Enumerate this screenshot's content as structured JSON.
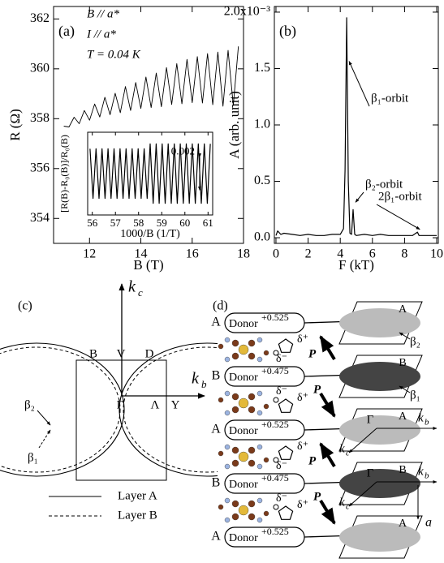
{
  "chart_data": [
    {
      "type": "line",
      "panel_label": "(a)",
      "annotations": [
        "B // a*",
        "I // a*",
        "T = 0.04 K"
      ],
      "xlabel": "B (T)",
      "ylabel": "R (Ω)",
      "x": [
        11.0,
        11.2,
        11.4,
        11.6,
        11.8,
        12.0,
        12.2,
        12.4,
        12.6,
        12.8,
        13.0,
        13.2,
        13.4,
        13.6,
        13.8,
        14.0,
        14.2,
        14.4,
        14.6,
        14.8,
        15.0,
        15.2,
        15.4,
        15.6,
        15.8,
        16.0,
        16.2,
        16.4,
        16.6,
        16.8,
        17.0,
        17.2,
        17.4,
        17.6,
        17.8
      ],
      "values": [
        357.7,
        357.67,
        358.06,
        357.8,
        358.33,
        357.94,
        358.59,
        358.07,
        358.86,
        358.16,
        359.02,
        358.24,
        359.29,
        358.33,
        359.45,
        358.41,
        359.67,
        358.45,
        359.83,
        358.48,
        360.05,
        358.57,
        360.21,
        358.6,
        360.38,
        358.64,
        360.49,
        358.63,
        360.61,
        358.56,
        360.67,
        358.5,
        360.74,
        358.53,
        360.9
      ],
      "color": "#000000",
      "xlim": [
        10.6,
        18.0
      ],
      "xticks": [
        12,
        14,
        16,
        18
      ],
      "ylim": [
        353,
        362.5
      ],
      "yticks": [
        354,
        356,
        358,
        360,
        362
      ]
    },
    {
      "type": "line",
      "xlabel": "1000/B (1/T)",
      "ylabel": "[R(B)-R₀(B)]/R₀(B)",
      "x": [
        55.9,
        56.03,
        56.16,
        56.29,
        56.42,
        56.55,
        56.68,
        56.81,
        56.94,
        57.07,
        57.2,
        57.33,
        57.46,
        57.59,
        57.72,
        57.85,
        57.98,
        58.11,
        58.24,
        58.37,
        58.5,
        58.63,
        58.76,
        58.89,
        59.02,
        59.15,
        59.28,
        59.41,
        59.54,
        59.67,
        59.8,
        59.93,
        60.06,
        60.19,
        60.32,
        60.45,
        60.58,
        60.71,
        60.84,
        60.97,
        61.1
      ],
      "values": [
        0.0015,
        -0.0015,
        0.0015,
        -0.0015,
        0.0015,
        -0.0015,
        0.0015,
        -0.0015,
        0.0015,
        -0.0015,
        0.0015,
        -0.0015,
        0.0015,
        -0.0015,
        0.0015,
        -0.0015,
        0.0015,
        -0.0015,
        0.0015,
        -0.0015,
        0.0018,
        -0.0018,
        0.0018,
        -0.0018,
        0.0018,
        -0.0018,
        0.0018,
        -0.0018,
        0.0018,
        -0.0018,
        0.0018,
        -0.0018,
        0.0018,
        -0.0018,
        0.0018,
        -0.0018,
        0.0018,
        -0.0018,
        0.0018,
        -0.0018,
        0.0018
      ],
      "color": "#000000",
      "xlim": [
        55.8,
        61.2
      ],
      "xticks": [
        56,
        57,
        58,
        59,
        60,
        61
      ],
      "ylim": [
        -0.0025,
        0.0025
      ],
      "scale_bar": 0.002
    },
    {
      "type": "line",
      "panel_label": "(b)",
      "xlabel": "F (kT)",
      "ylabel": "A (arb. unit)",
      "annotations": [
        "β₁-orbit",
        "β₂-orbit",
        "2β₁-orbit"
      ],
      "x": [
        0,
        0.1,
        0.3,
        0.5,
        1,
        1.5,
        2,
        2.5,
        3,
        3.5,
        4,
        4.2,
        4.3,
        4.4,
        4.5,
        4.6,
        4.7,
        4.8,
        4.9,
        5.0,
        5.5,
        6,
        6.5,
        7,
        7.5,
        8,
        8.5,
        8.8,
        8.9,
        9,
        9.5,
        10
      ],
      "values": [
        0.02,
        0.06,
        0.03,
        0.04,
        0.03,
        0.02,
        0.03,
        0.02,
        0.02,
        0.03,
        0.03,
        0.08,
        0.6,
        1.95,
        0.5,
        0.04,
        0.03,
        0.25,
        0.03,
        0.02,
        0.03,
        0.02,
        0.03,
        0.02,
        0.02,
        0.02,
        0.02,
        0.05,
        0.02,
        0.02,
        0.02,
        0.02
      ],
      "color": "#000000",
      "xlim": [
        -0.1,
        10.1
      ],
      "xticks": [
        0,
        2,
        4,
        6,
        8,
        10
      ],
      "ylim": [
        -0.05,
        2.05
      ],
      "yticks": [
        {
          "value": 0,
          "label": "0.0"
        },
        {
          "value": 0.5,
          "label": "0.5"
        },
        {
          "value": 1,
          "label": "1.0"
        },
        {
          "value": 1.5,
          "label": "1.5"
        },
        {
          "value": 2,
          "label": "2.0x10⁻³"
        }
      ]
    }
  ],
  "panel_c": {
    "label": "(c)",
    "kc": {
      "symbol": "k",
      "subscript": "c"
    },
    "kb": {
      "symbol": "k",
      "subscript": "b"
    },
    "points": [
      "B",
      "V",
      "D",
      "Γ",
      "Λ",
      "Y"
    ],
    "orbits": [
      "β₂",
      "β₁"
    ],
    "legend": [
      "Layer A",
      "Layer B"
    ]
  },
  "panel_d": {
    "label": "(d)",
    "rows": [
      {
        "layer": "A",
        "donor": "Donor",
        "charge": "+0.525"
      },
      {
        "layer": "B",
        "donor": "Donor",
        "charge": "+0.475"
      },
      {
        "layer": "A",
        "donor": "Donor",
        "charge": "+0.525"
      },
      {
        "layer": "B",
        "donor": "Donor",
        "charge": "+0.475"
      },
      {
        "layer": "A",
        "donor": "Donor",
        "charge": "+0.525"
      }
    ],
    "dipole": {
      "delta_plus": "δ⁺",
      "delta_minus": "δ⁻",
      "polarization": "P"
    },
    "surfaces": [
      "A",
      "B",
      "A",
      "B",
      "A"
    ],
    "orbits": [
      "β₂",
      "β₁"
    ],
    "center": "Γ",
    "kb": {
      "symbol": "k",
      "subscript": "b"
    },
    "kc": {
      "symbol": "k",
      "subscript": "c"
    },
    "stacking_axis": "a"
  }
}
